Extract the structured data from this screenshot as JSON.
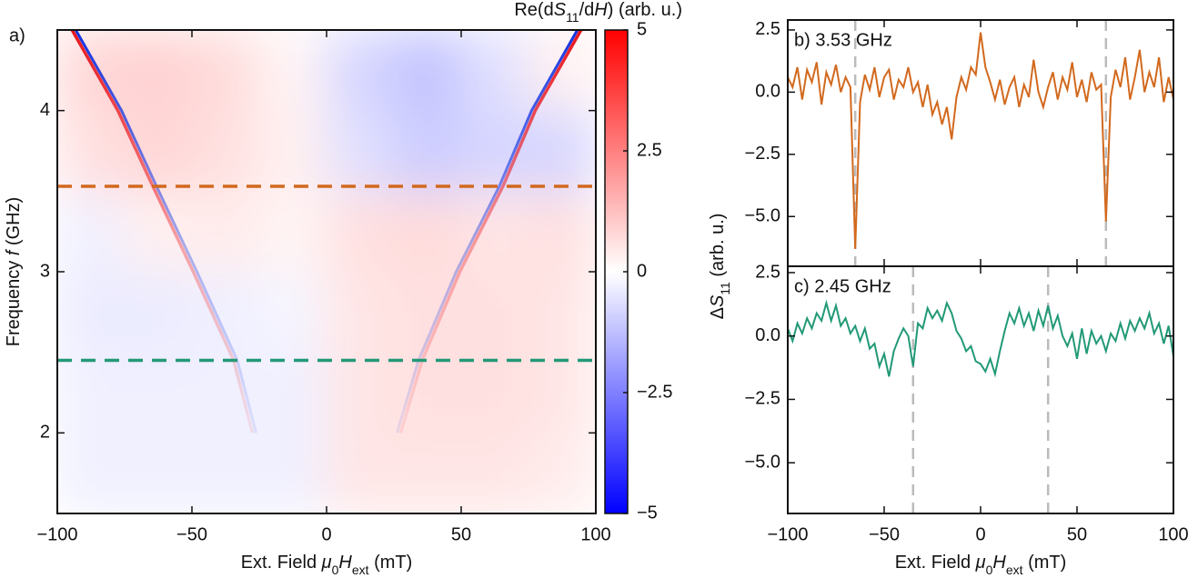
{
  "chart_data": [
    {
      "type": "heatmap",
      "panel_label": "a)",
      "xlabel": [
        "Ext. Field ",
        "μ",
        "0",
        "H",
        "ext",
        " (mT)"
      ],
      "ylabel": [
        "Frequency ",
        "f",
        " (GHz)"
      ],
      "xlim": [
        -100,
        100
      ],
      "ylim": [
        1.5,
        4.5
      ],
      "xticks": [
        {
          "value": -100,
          "label": "−100"
        },
        {
          "value": -50,
          "label": "−50"
        },
        0,
        50,
        100
      ],
      "yticks": [
        2,
        3,
        4
      ],
      "x_edges": [
        -100,
        -75,
        -50,
        -25,
        0,
        25,
        50,
        75,
        100
      ],
      "y_edges": [
        1.5,
        2,
        2.5,
        3,
        3.5,
        4,
        4.5
      ],
      "z": [
        [
          -0.3,
          -0.3,
          -0.3,
          -0.3,
          0.5,
          0.5,
          0.5,
          0.4
        ],
        [
          -0.3,
          -0.3,
          -0.3,
          -0.3,
          0.5,
          0.6,
          0.6,
          0.5
        ],
        [
          -0.4,
          -0.4,
          -0.3,
          -0.2,
          0.5,
          0.6,
          0.6,
          0.5
        ],
        [
          -0.3,
          0.3,
          0.4,
          0.2,
          0.6,
          0.7,
          0.5,
          0.6
        ],
        [
          0.6,
          0.8,
          0.6,
          0.3,
          -0.6,
          -1.0,
          -0.8,
          -0.8
        ],
        [
          0.8,
          0.9,
          0.7,
          0.2,
          -0.8,
          -1.2,
          -0.6,
          0.3
        ]
      ],
      "colorbar": {
        "label": [
          "Re(d",
          "S",
          "11",
          "/d",
          "H",
          ") (arb. u.)"
        ],
        "lim": [
          -5,
          5
        ],
        "ticks": [
          5,
          2.5,
          0,
          {
            "value": -2.5,
            "label": "−2.5"
          },
          {
            "value": -5,
            "label": "−5"
          }
        ],
        "colors": [
          "#0000ff",
          "#ffffff",
          "#ff0000"
        ]
      },
      "branches": [
        {
          "x": [
            -94,
            -77,
            -64,
            -49,
            -34,
            -27
          ],
          "y": [
            4.5,
            4.0,
            3.53,
            3.0,
            2.45,
            2.0
          ],
          "color": "#e8141c",
          "color2": "#1030e0"
        },
        {
          "x": [
            94,
            77,
            65,
            49,
            35,
            27
          ],
          "y": [
            4.5,
            4.0,
            3.53,
            3.0,
            2.45,
            2.0
          ],
          "color": "#e8141c",
          "color2": "#1030e0"
        }
      ],
      "hlines": [
        {
          "value": 3.53,
          "color": "#d2691e"
        },
        {
          "value": 2.45,
          "color": "#229977"
        }
      ]
    },
    {
      "type": "line",
      "panel_label": "b) 3.53 GHz",
      "ylabel": [
        "Δ",
        "S",
        "11",
        " (arb. u.)"
      ],
      "xlim": [
        -100,
        100
      ],
      "ylim": [
        -7,
        2.9
      ],
      "xticks": [
        -100,
        -50,
        0,
        50,
        100
      ],
      "yticks": [
        2.5,
        {
          "value": 0,
          "label": "0.0"
        },
        {
          "value": -2.5,
          "label": "−2.5"
        },
        {
          "value": -5,
          "label": "−5.0"
        }
      ],
      "vlines": {
        "values": [
          -65,
          65
        ],
        "color": "#bbbbbb"
      },
      "x": [
        -100,
        -97.5,
        -95,
        -92.5,
        -90,
        -87.5,
        -85,
        -82.5,
        -80,
        -77.5,
        -75,
        -72.5,
        -70,
        -67.5,
        -65,
        -62.5,
        -60,
        -57.5,
        -55,
        -52.5,
        -50,
        -47.5,
        -45,
        -42.5,
        -40,
        -37.5,
        -35,
        -32.5,
        -30,
        -27.5,
        -25,
        -22.5,
        -20,
        -17.5,
        -15,
        -12.5,
        -10,
        -7.5,
        -5,
        -2.5,
        0,
        2.5,
        5,
        7.5,
        10,
        12.5,
        15,
        17.5,
        20,
        22.5,
        25,
        27.5,
        30,
        32.5,
        35,
        37.5,
        40,
        42.5,
        45,
        47.5,
        50,
        52.5,
        55,
        57.5,
        60,
        62.5,
        65,
        67.5,
        70,
        72.5,
        75,
        77.5,
        80,
        82.5,
        85,
        87.5,
        90,
        92.5,
        95,
        97.5,
        100
      ],
      "series": [
        {
          "color": "#d2691e",
          "values": [
            0.6,
            0.2,
            1.0,
            -0.3,
            0.9,
            0.4,
            1.2,
            -0.5,
            0.8,
            0.3,
            1.1,
            0.0,
            0.6,
            0.2,
            -6.3,
            -0.4,
            0.7,
            0.1,
            1.0,
            -0.2,
            0.6,
            0.9,
            -0.3,
            0.5,
            0.2,
            1.0,
            0.0,
            0.4,
            -0.6,
            0.3,
            -0.9,
            -0.4,
            -1.3,
            -0.6,
            -1.9,
            -0.2,
            0.6,
            0.1,
            1.0,
            0.7,
            2.4,
            1.0,
            0.4,
            -0.3,
            0.5,
            -0.5,
            0.2,
            0.6,
            -0.6,
            0.3,
            -0.2,
            1.3,
            0.0,
            -0.6,
            0.2,
            0.8,
            -0.3,
            0.6,
            0.1,
            1.2,
            -0.2,
            0.5,
            -0.4,
            0.8,
            0.1,
            0.3,
            -5.2,
            -0.2,
            0.9,
            0.2,
            1.4,
            -0.3,
            0.6,
            1.7,
            0.0,
            0.8,
            0.2,
            1.4,
            -0.4,
            0.6,
            -0.3
          ]
        }
      ]
    },
    {
      "type": "line",
      "panel_label": "c) 2.45 GHz",
      "xlabel": [
        "Ext. Field ",
        "μ",
        "0",
        "H",
        "ext",
        " (mT)"
      ],
      "xlim": [
        -100,
        100
      ],
      "ylim": [
        -7,
        2.75
      ],
      "xticks": [
        {
          "value": -100,
          "label": "−100"
        },
        {
          "value": -50,
          "label": "−50"
        },
        0,
        50,
        100
      ],
      "yticks": [
        2.5,
        {
          "value": 0,
          "label": "0.0"
        },
        {
          "value": -2.5,
          "label": "−2.5"
        },
        {
          "value": -5,
          "label": "−5.0"
        }
      ],
      "vlines": {
        "values": [
          -35,
          35
        ],
        "color": "#bbbbbb"
      },
      "x": [
        -100,
        -97.5,
        -95,
        -92.5,
        -90,
        -87.5,
        -85,
        -82.5,
        -80,
        -77.5,
        -75,
        -72.5,
        -70,
        -67.5,
        -65,
        -62.5,
        -60,
        -57.5,
        -55,
        -52.5,
        -50,
        -47.5,
        -45,
        -42.5,
        -40,
        -37.5,
        -35,
        -32.5,
        -30,
        -27.5,
        -25,
        -22.5,
        -20,
        -17.5,
        -15,
        -12.5,
        -10,
        -7.5,
        -5,
        -2.5,
        0,
        2.5,
        5,
        7.5,
        10,
        12.5,
        15,
        17.5,
        20,
        22.5,
        25,
        27.5,
        30,
        32.5,
        35,
        37.5,
        40,
        42.5,
        45,
        47.5,
        50,
        52.5,
        55,
        57.5,
        60,
        62.5,
        65,
        67.5,
        70,
        72.5,
        75,
        77.5,
        80,
        82.5,
        85,
        87.5,
        90,
        92.5,
        95,
        97.5,
        100
      ],
      "series": [
        {
          "color": "#229977",
          "values": [
            0.3,
            -0.2,
            0.5,
            0.1,
            0.7,
            0.3,
            0.9,
            0.6,
            1.3,
            0.6,
            1.2,
            0.4,
            0.7,
            0.1,
            0.4,
            -0.2,
            0.3,
            -0.5,
            -0.3,
            -1.2,
            -0.7,
            -1.6,
            -0.6,
            -0.1,
            0.3,
            0.0,
            -1.2,
            0.5,
            0.3,
            1.1,
            0.7,
            1.0,
            0.6,
            1.3,
            0.9,
            0.2,
            -0.1,
            -0.6,
            -0.4,
            -1.0,
            -1.1,
            -1.4,
            -0.9,
            -1.5,
            -0.6,
            0.2,
            0.9,
            0.5,
            1.1,
            0.4,
            0.9,
            0.2,
            1.0,
            0.4,
            1.2,
            0.3,
            0.8,
            0.0,
            -0.4,
            0.1,
            -0.9,
            0.3,
            -0.7,
            0.2,
            -0.3,
            0.0,
            -0.6,
            0.1,
            -0.2,
            0.5,
            -0.1,
            0.6,
            0.2,
            0.7,
            0.3,
            0.9,
            0.1,
            0.5,
            -0.3,
            0.4,
            -0.8
          ]
        }
      ]
    }
  ]
}
